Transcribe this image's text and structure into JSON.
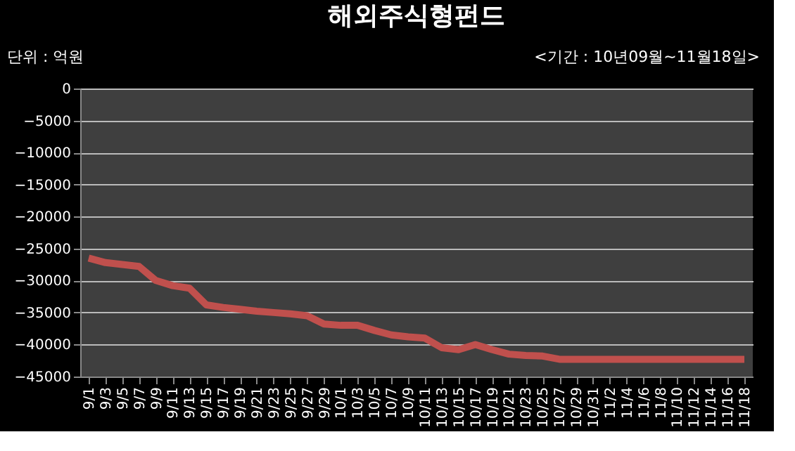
{
  "chart_data": {
    "type": "line",
    "title": "해외주식형펀드",
    "annotations": [
      "단위 : 억원",
      "<기간 : 10년09월~11월18일>"
    ],
    "categories": [
      "9/1",
      "9/3",
      "9/5",
      "9/7",
      "9/9",
      "9/11",
      "9/13",
      "9/15",
      "9/17",
      "9/19",
      "9/21",
      "9/23",
      "9/25",
      "9/27",
      "9/29",
      "10/1",
      "10/3",
      "10/5",
      "10/7",
      "10/9",
      "10/11",
      "10/13",
      "10/15",
      "10/17",
      "10/19",
      "10/21",
      "10/23",
      "10/25",
      "10/27",
      "10/29",
      "10/31",
      "11/2",
      "11/4",
      "11/6",
      "11/8",
      "11/10",
      "11/12",
      "11/14",
      "11/16",
      "11/18"
    ],
    "series": [
      {
        "color": "#c0504d",
        "values": [
          -26500,
          -27200,
          -27500,
          -27800,
          -30000,
          -30800,
          -31200,
          -33800,
          -34200,
          -34500,
          -34800,
          -35000,
          -35200,
          -35500,
          -36800,
          -37000,
          -37000,
          -37800,
          -38500,
          -38800,
          -39000,
          -40500,
          -40800,
          -40000,
          -40800,
          -41500,
          -41700,
          -41800,
          -42300,
          -42300,
          -42300,
          -42300,
          -42300,
          -42300,
          -42300,
          -42300,
          -42300,
          -42300,
          -42300,
          -42300
        ]
      }
    ],
    "ylim": [
      -45000,
      0
    ],
    "yticks": [
      -45000,
      -40000,
      -35000,
      -30000,
      -25000,
      -20000,
      -15000,
      -10000,
      -5000,
      0
    ],
    "grid": "y",
    "marker": "none",
    "line_style": "solid"
  }
}
